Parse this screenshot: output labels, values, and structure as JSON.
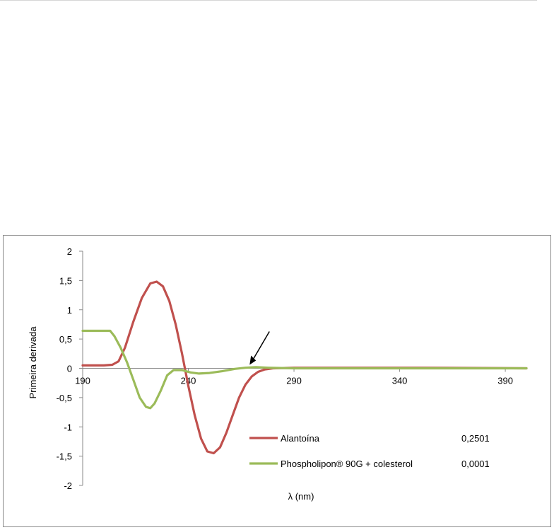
{
  "chart_data": {
    "type": "line",
    "title": "",
    "xlabel": "λ (nm)",
    "ylabel": "Primeira derivada",
    "xlim": [
      190,
      400
    ],
    "ylim": [
      -2,
      2
    ],
    "x_ticks": [
      "190",
      "240",
      "290",
      "340",
      "390"
    ],
    "y_ticks": [
      "2",
      "1,5",
      "1",
      "0,5",
      "0",
      "-0,5",
      "-1",
      "-1,5",
      "-2"
    ],
    "grid": false,
    "legend_position": "lower-right",
    "annotation": "arrow pointing to the curve near λ ≈ 270 nm",
    "series": [
      {
        "name": "Alantoína",
        "legend_value": "0,2501",
        "color": "#c0504d",
        "points": [
          [
            190,
            0.05
          ],
          [
            200,
            0.05
          ],
          [
            204,
            0.06
          ],
          [
            207,
            0.12
          ],
          [
            210,
            0.35
          ],
          [
            214,
            0.8
          ],
          [
            218,
            1.2
          ],
          [
            222,
            1.45
          ],
          [
            225,
            1.48
          ],
          [
            228,
            1.4
          ],
          [
            231,
            1.15
          ],
          [
            234,
            0.75
          ],
          [
            237,
            0.25
          ],
          [
            240,
            -0.3
          ],
          [
            243,
            -0.8
          ],
          [
            246,
            -1.2
          ],
          [
            249,
            -1.42
          ],
          [
            252,
            -1.45
          ],
          [
            255,
            -1.35
          ],
          [
            258,
            -1.1
          ],
          [
            261,
            -0.8
          ],
          [
            264,
            -0.5
          ],
          [
            267,
            -0.28
          ],
          [
            270,
            -0.14
          ],
          [
            273,
            -0.06
          ],
          [
            276,
            -0.02
          ],
          [
            280,
            0.0
          ],
          [
            290,
            0.01
          ],
          [
            320,
            0.01
          ],
          [
            350,
            0.01
          ],
          [
            380,
            0.005
          ],
          [
            400,
            0.0
          ]
        ]
      },
      {
        "name": "Phospholipon® 90G + colesterol",
        "legend_value": "0,0001",
        "color": "#9bbb59",
        "points": [
          [
            190,
            0.64
          ],
          [
            203,
            0.64
          ],
          [
            205,
            0.55
          ],
          [
            208,
            0.35
          ],
          [
            211,
            0.1
          ],
          [
            214,
            -0.2
          ],
          [
            217,
            -0.5
          ],
          [
            220,
            -0.66
          ],
          [
            222,
            -0.68
          ],
          [
            224,
            -0.6
          ],
          [
            227,
            -0.38
          ],
          [
            230,
            -0.12
          ],
          [
            233,
            -0.03
          ],
          [
            237,
            -0.03
          ],
          [
            241,
            -0.07
          ],
          [
            245,
            -0.09
          ],
          [
            250,
            -0.08
          ],
          [
            256,
            -0.05
          ],
          [
            262,
            -0.01
          ],
          [
            267,
            0.01
          ],
          [
            272,
            0.02
          ],
          [
            278,
            0.01
          ],
          [
            290,
            0.0
          ],
          [
            400,
            0.0
          ]
        ]
      }
    ]
  }
}
